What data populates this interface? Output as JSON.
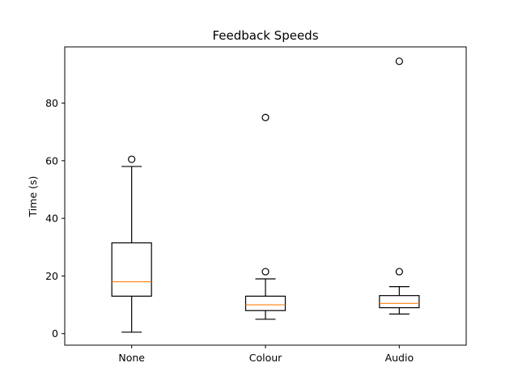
{
  "chart_data": {
    "type": "box",
    "title": "Feedback Speeds",
    "xlabel": "",
    "ylabel": "Time (s)",
    "ylim": [
      -4,
      99.5
    ],
    "yticks": [
      0,
      20,
      40,
      60,
      80
    ],
    "categories": [
      "None",
      "Colour",
      "Audio"
    ],
    "boxes": [
      {
        "category": "None",
        "whisker_low": 0.5,
        "q1": 13.0,
        "median": 18.0,
        "q3": 31.5,
        "whisker_high": 58.0,
        "outliers": [
          60.5
        ]
      },
      {
        "category": "Colour",
        "whisker_low": 5.0,
        "q1": 8.0,
        "median": 10.0,
        "q3": 13.0,
        "whisker_high": 19.0,
        "outliers": [
          21.5,
          75.0
        ]
      },
      {
        "category": "Audio",
        "whisker_low": 6.8,
        "q1": 9.0,
        "median": 10.5,
        "q3": 13.2,
        "whisker_high": 16.3,
        "outliers": [
          21.5,
          94.5
        ]
      }
    ],
    "grid": false,
    "colors": {
      "box": "#000000",
      "median": "#ff7f0e",
      "outlier": "#000000"
    }
  }
}
